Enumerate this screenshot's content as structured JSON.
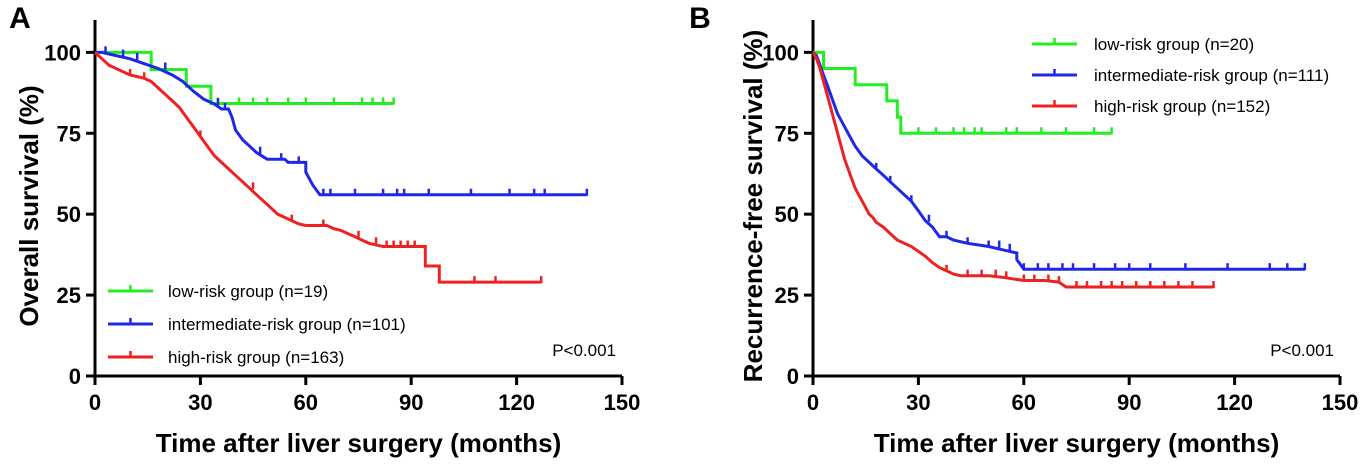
{
  "chart_data": [
    {
      "type": "line",
      "panel_label": "A",
      "xlabel": "Time after liver surgery (months)",
      "ylabel": "Overall survival (%)",
      "xlim": [
        0,
        150
      ],
      "ylim": [
        0,
        110
      ],
      "xticks": [
        0,
        30,
        60,
        90,
        120,
        150
      ],
      "yticks": [
        0,
        25,
        50,
        75,
        100
      ],
      "legend_position": "bottom-left",
      "annotation": "P<0.001",
      "series": [
        {
          "name": "low-risk group (n=19)",
          "color": "#22ee22",
          "points": [
            [
              0,
              100
            ],
            [
              16,
              100
            ],
            [
              16,
              94.7
            ],
            [
              26,
              94.7
            ],
            [
              26,
              89.5
            ],
            [
              33,
              89.5
            ],
            [
              33,
              84.2
            ],
            [
              85,
              84.2
            ]
          ],
          "censors": [
            35,
            41,
            45,
            49,
            55,
            60,
            68,
            76,
            79,
            82,
            85
          ]
        },
        {
          "name": "intermediate-risk group (n=101)",
          "color": "#1e28e6",
          "points": [
            [
              0,
              100
            ],
            [
              2,
              100
            ],
            [
              6,
              99
            ],
            [
              10,
              98
            ],
            [
              14,
              96.5
            ],
            [
              18,
              95
            ],
            [
              22,
              93
            ],
            [
              25,
              91
            ],
            [
              28,
              88
            ],
            [
              31,
              85.5
            ],
            [
              34,
              84
            ],
            [
              36,
              82.5
            ],
            [
              38,
              82.5
            ],
            [
              39,
              80
            ],
            [
              40,
              76
            ],
            [
              42,
              73
            ],
            [
              44,
              71
            ],
            [
              46,
              69
            ],
            [
              49,
              67
            ],
            [
              54,
              67
            ],
            [
              55,
              66
            ],
            [
              60,
              66
            ],
            [
              60,
              63
            ],
            [
              62,
              59
            ],
            [
              64,
              56
            ],
            [
              140,
              56
            ]
          ],
          "censors": [
            3,
            8,
            12,
            20,
            35,
            37,
            47,
            53,
            58,
            65,
            67,
            74,
            82,
            86,
            88,
            95,
            107,
            118,
            125,
            128,
            140
          ]
        },
        {
          "name": "high-risk group (n=163)",
          "color": "#ee2222",
          "points": [
            [
              0,
              100
            ],
            [
              2,
              98
            ],
            [
              4,
              96
            ],
            [
              6,
              95
            ],
            [
              8,
              94
            ],
            [
              10,
              93
            ],
            [
              12,
              92.5
            ],
            [
              14,
              92
            ],
            [
              16,
              91
            ],
            [
              18,
              89
            ],
            [
              20,
              87
            ],
            [
              22,
              85
            ],
            [
              24,
              83
            ],
            [
              26,
              80
            ],
            [
              28,
              77
            ],
            [
              30,
              74
            ],
            [
              32,
              71
            ],
            [
              34,
              68
            ],
            [
              36,
              66
            ],
            [
              38,
              64
            ],
            [
              40,
              62
            ],
            [
              42,
              60
            ],
            [
              44,
              58
            ],
            [
              46,
              56
            ],
            [
              48,
              54
            ],
            [
              50,
              52
            ],
            [
              52,
              50
            ],
            [
              54,
              49
            ],
            [
              56,
              48
            ],
            [
              58,
              47
            ],
            [
              60,
              46.5
            ],
            [
              66,
              46.5
            ],
            [
              68,
              45.5
            ],
            [
              70,
              45
            ],
            [
              72,
              44
            ],
            [
              74,
              43
            ],
            [
              76,
              42
            ],
            [
              78,
              41
            ],
            [
              82,
              40
            ],
            [
              94,
              40
            ],
            [
              94,
              34
            ],
            [
              98,
              34
            ],
            [
              98,
              29
            ],
            [
              127,
              29
            ]
          ],
          "censors": [
            10,
            14,
            30,
            45,
            56,
            65,
            75,
            80,
            83,
            85,
            87,
            89,
            91,
            108,
            114,
            127
          ]
        }
      ]
    },
    {
      "type": "line",
      "panel_label": "B",
      "xlabel": "Time after liver surgery (months)",
      "ylabel": "Recurrence-free survival (%)",
      "xlim": [
        0,
        150
      ],
      "ylim": [
        0,
        110
      ],
      "xticks": [
        0,
        30,
        60,
        90,
        120,
        150
      ],
      "yticks": [
        0,
        25,
        50,
        75,
        100
      ],
      "legend_position": "top-right",
      "annotation": "P<0.001",
      "series": [
        {
          "name": "low-risk group (n=20)",
          "color": "#22ee22",
          "points": [
            [
              0,
              100
            ],
            [
              3,
              100
            ],
            [
              3,
              95
            ],
            [
              12,
              95
            ],
            [
              12,
              90
            ],
            [
              21,
              90
            ],
            [
              21,
              85
            ],
            [
              24,
              85
            ],
            [
              24,
              80
            ],
            [
              25,
              80
            ],
            [
              25,
              75
            ],
            [
              85,
              75
            ]
          ],
          "censors": [
            30,
            35,
            40,
            43,
            46,
            48,
            55,
            58,
            65,
            72,
            80,
            85
          ]
        },
        {
          "name": "intermediate-risk group (n=111)",
          "color": "#1e28e6",
          "points": [
            [
              0,
              100
            ],
            [
              1,
              99
            ],
            [
              2,
              96
            ],
            [
              3,
              93
            ],
            [
              4,
              90
            ],
            [
              5,
              87
            ],
            [
              6,
              84
            ],
            [
              7,
              81
            ],
            [
              8,
              79
            ],
            [
              9,
              77
            ],
            [
              10,
              75
            ],
            [
              11,
              73
            ],
            [
              12,
              71
            ],
            [
              14,
              68
            ],
            [
              16,
              66
            ],
            [
              18,
              64
            ],
            [
              20,
              62
            ],
            [
              22,
              60
            ],
            [
              24,
              58
            ],
            [
              26,
              56
            ],
            [
              28,
              54
            ],
            [
              30,
              51
            ],
            [
              32,
              48
            ],
            [
              34,
              46
            ],
            [
              36,
              43
            ],
            [
              38,
              43
            ],
            [
              40,
              42
            ],
            [
              44,
              41
            ],
            [
              50,
              40
            ],
            [
              54,
              39
            ],
            [
              58,
              38
            ],
            [
              58,
              36
            ],
            [
              60,
              33
            ],
            [
              140,
              33
            ]
          ],
          "censors": [
            18,
            22,
            28,
            33,
            38,
            44,
            50,
            53,
            56,
            60,
            64,
            67,
            71,
            74,
            80,
            86,
            90,
            96,
            106,
            118,
            130,
            135,
            140
          ]
        },
        {
          "name": "high-risk group (n=152)",
          "color": "#ee2222",
          "points": [
            [
              0,
              100
            ],
            [
              1,
              98
            ],
            [
              2,
              95
            ],
            [
              3,
              91
            ],
            [
              4,
              87
            ],
            [
              5,
              83
            ],
            [
              6,
              79
            ],
            [
              7,
              75
            ],
            [
              8,
              71
            ],
            [
              9,
              67
            ],
            [
              10,
              64
            ],
            [
              11,
              61
            ],
            [
              12,
              58
            ],
            [
              13,
              56
            ],
            [
              14,
              54
            ],
            [
              15,
              52
            ],
            [
              16,
              50
            ],
            [
              17,
              49
            ],
            [
              18,
              47.5
            ],
            [
              20,
              46
            ],
            [
              22,
              44
            ],
            [
              24,
              42
            ],
            [
              26,
              41
            ],
            [
              28,
              40
            ],
            [
              30,
              38.5
            ],
            [
              32,
              37
            ],
            [
              34,
              35
            ],
            [
              36,
              33.5
            ],
            [
              38,
              32.5
            ],
            [
              40,
              31.5
            ],
            [
              42,
              31
            ],
            [
              50,
              31
            ],
            [
              54,
              30.5
            ],
            [
              60,
              29.5
            ],
            [
              66,
              29.5
            ],
            [
              70,
              29
            ],
            [
              72,
              27.5
            ],
            [
              114,
              27.5
            ]
          ],
          "censors": [
            38,
            44,
            48,
            52,
            55,
            60,
            63,
            67,
            70,
            75,
            78,
            82,
            85,
            88,
            92,
            96,
            100,
            104,
            108,
            114
          ]
        }
      ]
    }
  ]
}
